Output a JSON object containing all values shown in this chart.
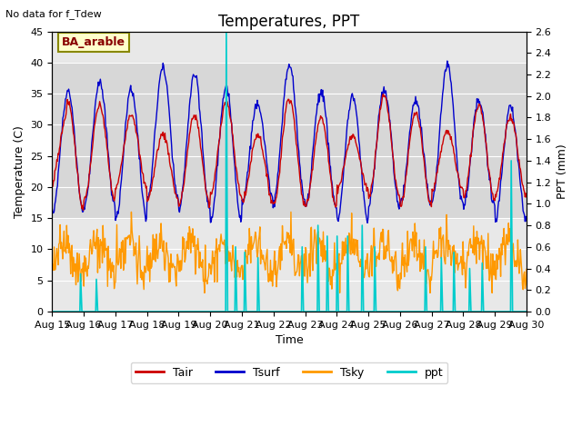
{
  "title": "Temperatures, PPT",
  "xlabel": "Time",
  "ylabel_left": "Temperature (C)",
  "ylabel_right": "PPT (mm)",
  "note": "No data for f_Tdew",
  "location_label": "BA_arable",
  "ylim_left": [
    0,
    45
  ],
  "ylim_right": [
    0.0,
    2.6
  ],
  "xlim": [
    0,
    15
  ],
  "xtick_labels": [
    "Aug 15",
    "Aug 16",
    "Aug 17",
    "Aug 18",
    "Aug 19",
    "Aug 20",
    "Aug 21",
    "Aug 22",
    "Aug 23",
    "Aug 24",
    "Aug 25",
    "Aug 26",
    "Aug 27",
    "Aug 28",
    "Aug 29",
    "Aug 30"
  ],
  "shade_ymin": 15,
  "shade_ymax": 40,
  "tair_color": "#cc0000",
  "tsurf_color": "#0000cc",
  "tsky_color": "#ff9900",
  "ppt_color": "#00cccc",
  "background_color": "#ffffff",
  "plot_bg_color": "#e8e8e8"
}
